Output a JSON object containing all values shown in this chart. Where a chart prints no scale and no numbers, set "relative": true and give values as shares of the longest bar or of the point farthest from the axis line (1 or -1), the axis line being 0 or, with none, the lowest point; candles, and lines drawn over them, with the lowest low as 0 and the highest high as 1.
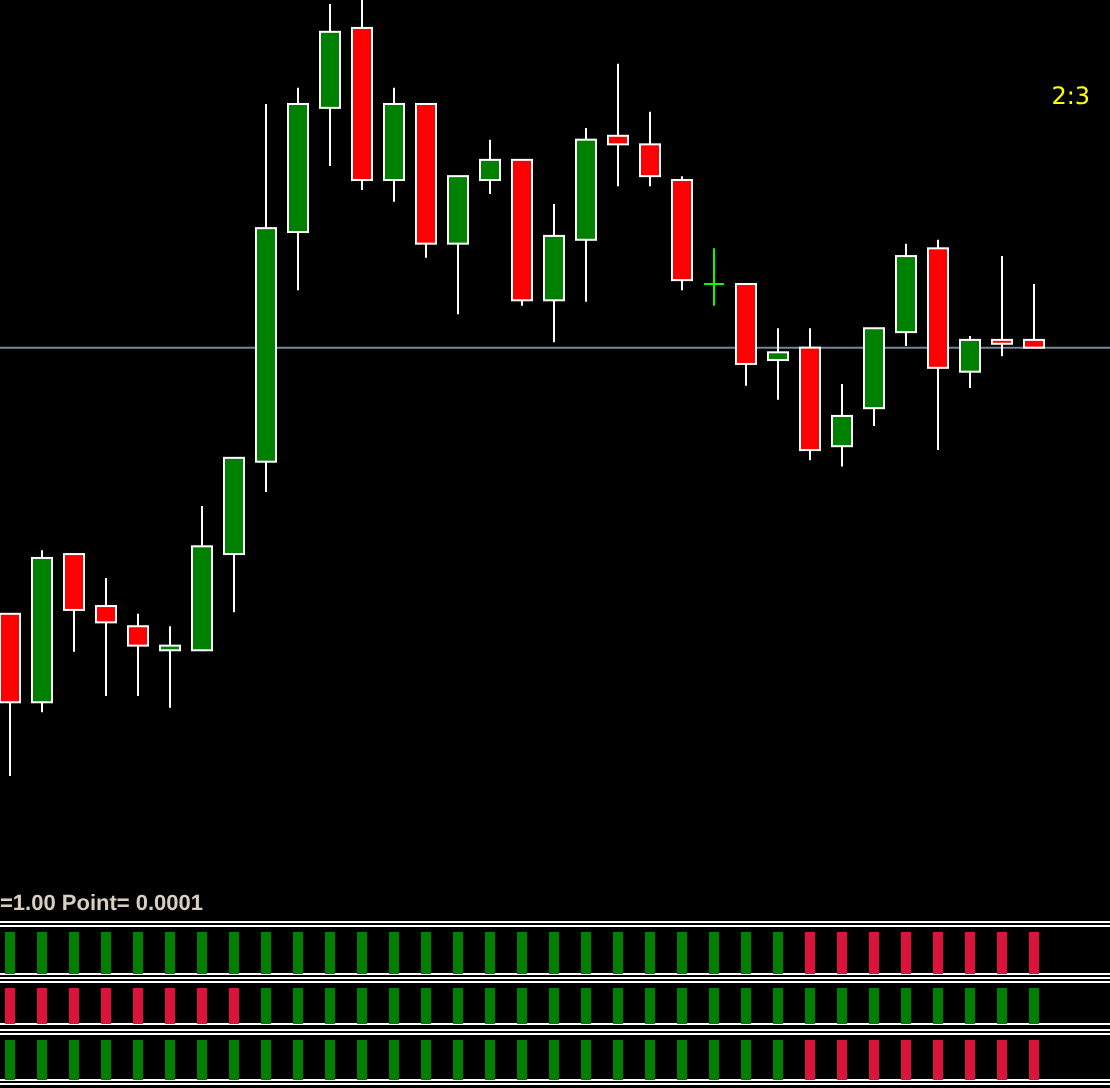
{
  "chart_data": [
    {
      "type": "candlestick",
      "relative": true,
      "tick_labels": false,
      "categories": [
        null,
        null,
        null,
        null,
        null,
        null,
        null,
        null,
        null,
        null,
        null,
        null,
        null,
        null,
        null,
        null,
        null,
        null,
        null,
        null,
        null,
        null,
        null,
        null,
        null,
        null,
        null,
        null,
        null,
        null,
        null,
        null,
        null
      ],
      "ohlc": [
        [
          0.209,
          0.209,
          0,
          0.095
        ],
        [
          0.095,
          0.291,
          0.082,
          0.281
        ],
        [
          0.286,
          0.286,
          0.16,
          0.214
        ],
        [
          0.219,
          0.255,
          0.103,
          0.198
        ],
        [
          0.193,
          0.209,
          0.103,
          0.168
        ],
        [
          0.162,
          0.193,
          0.088,
          0.168
        ],
        [
          0.162,
          0.348,
          0.162,
          0.296
        ],
        [
          0.286,
          0.41,
          0.211,
          0.41
        ],
        [
          0.405,
          0.866,
          0.366,
          0.706
        ],
        [
          0.701,
          0.887,
          0.626,
          0.866
        ],
        [
          0.861,
          0.995,
          0.786,
          0.959
        ],
        [
          0.964,
          1,
          0.755,
          0.768
        ],
        [
          0.768,
          0.887,
          0.74,
          0.866
        ],
        [
          0.866,
          0.866,
          0.668,
          0.686
        ],
        [
          0.686,
          0.773,
          0.595,
          0.773
        ],
        [
          0.768,
          0.82,
          0.75,
          0.794
        ],
        [
          0.794,
          0.794,
          0.606,
          0.613
        ],
        [
          0.613,
          0.737,
          0.559,
          0.696
        ],
        [
          0.691,
          0.835,
          0.611,
          0.82
        ],
        [
          0.825,
          0.918,
          0.76,
          0.814
        ],
        [
          0.814,
          0.856,
          0.76,
          0.773
        ],
        [
          0.768,
          0.773,
          0.626,
          0.639
        ],
        [
          0.634,
          0.68,
          0.606,
          0.634
        ],
        [
          0.634,
          0.634,
          0.503,
          0.531
        ],
        [
          0.536,
          0.577,
          0.485,
          0.546
        ],
        [
          0.552,
          0.577,
          0.407,
          0.42
        ],
        [
          0.425,
          0.505,
          0.399,
          0.464
        ],
        [
          0.474,
          0.577,
          0.451,
          0.577
        ],
        [
          0.572,
          0.686,
          0.554,
          0.67
        ],
        [
          0.68,
          0.691,
          0.42,
          0.526
        ],
        [
          0.521,
          0.567,
          0.5,
          0.562
        ],
        [
          0.562,
          0.67,
          0.541,
          0.557
        ],
        [
          0.562,
          0.634,
          0.552,
          0.552
        ]
      ],
      "colors": [
        "#ff0000",
        "#008000",
        "#ff0000",
        "#ff0000",
        "#ff0000",
        "#008000",
        "#008000",
        "#008000",
        "#008000",
        "#008000",
        "#008000",
        "#ff0000",
        "#008000",
        "#ff0000",
        "#008000",
        "#008000",
        "#ff0000",
        "#008000",
        "#008000",
        "#ff0000",
        "#ff0000",
        "#ff0000",
        "#00ff00",
        "#ff0000",
        "#008000",
        "#ff0000",
        "#008000",
        "#008000",
        "#008000",
        "#ff0000",
        "#008000",
        "#ff0000",
        "#ff0000"
      ],
      "ref_lines": [
        {
          "axis": "y",
          "value": 0.552,
          "color": "#778899"
        }
      ],
      "annotations": [
        "2:3"
      ]
    },
    {
      "type": "bar",
      "relative": true,
      "tick_labels": false,
      "categories": [
        null,
        null,
        null,
        null,
        null,
        null,
        null,
        null,
        null,
        null,
        null,
        null,
        null,
        null,
        null,
        null,
        null,
        null,
        null,
        null,
        null,
        null,
        null,
        null,
        null,
        null,
        null,
        null,
        null,
        null,
        null,
        null,
        null
      ],
      "values": [
        1,
        1,
        1,
        1,
        1,
        1,
        1,
        1,
        1,
        1,
        1,
        1,
        1,
        1,
        1,
        1,
        1,
        1,
        1,
        1,
        1,
        1,
        1,
        1,
        1,
        1,
        1,
        1,
        1,
        1,
        1,
        1,
        1
      ],
      "colors": [
        "#008000",
        "#008000",
        "#008000",
        "#008000",
        "#008000",
        "#008000",
        "#008000",
        "#008000",
        "#008000",
        "#008000",
        "#008000",
        "#008000",
        "#008000",
        "#008000",
        "#008000",
        "#008000",
        "#008000",
        "#008000",
        "#008000",
        "#008000",
        "#008000",
        "#008000",
        "#008000",
        "#008000",
        "#008000",
        "#dc143c",
        "#dc143c",
        "#dc143c",
        "#dc143c",
        "#dc143c",
        "#dc143c",
        "#dc143c",
        "#dc143c"
      ],
      "annotations": [
        "=1.00  Point= 0.0001"
      ]
    },
    {
      "type": "bar",
      "relative": true,
      "tick_labels": false,
      "categories": [
        null,
        null,
        null,
        null,
        null,
        null,
        null,
        null,
        null,
        null,
        null,
        null,
        null,
        null,
        null,
        null,
        null,
        null,
        null,
        null,
        null,
        null,
        null,
        null,
        null,
        null,
        null,
        null,
        null,
        null,
        null,
        null,
        null
      ],
      "values": [
        1,
        1,
        1,
        1,
        1,
        1,
        1,
        1,
        1,
        1,
        1,
        1,
        1,
        1,
        1,
        1,
        1,
        1,
        1,
        1,
        1,
        1,
        1,
        1,
        1,
        1,
        1,
        1,
        1,
        1,
        1,
        1,
        1
      ],
      "colors": [
        "#dc143c",
        "#dc143c",
        "#dc143c",
        "#dc143c",
        "#dc143c",
        "#dc143c",
        "#dc143c",
        "#dc143c",
        "#008000",
        "#008000",
        "#008000",
        "#008000",
        "#008000",
        "#008000",
        "#008000",
        "#008000",
        "#008000",
        "#008000",
        "#008000",
        "#008000",
        "#008000",
        "#008000",
        "#008000",
        "#008000",
        "#008000",
        "#008000",
        "#008000",
        "#008000",
        "#008000",
        "#008000",
        "#008000",
        "#008000",
        "#008000"
      ]
    },
    {
      "type": "bar",
      "relative": true,
      "tick_labels": false,
      "categories": [
        null,
        null,
        null,
        null,
        null,
        null,
        null,
        null,
        null,
        null,
        null,
        null,
        null,
        null,
        null,
        null,
        null,
        null,
        null,
        null,
        null,
        null,
        null,
        null,
        null,
        null,
        null,
        null,
        null,
        null,
        null,
        null,
        null
      ],
      "values": [
        1,
        1,
        1,
        1,
        1,
        1,
        1,
        1,
        1,
        1,
        1,
        1,
        1,
        1,
        1,
        1,
        1,
        1,
        1,
        1,
        1,
        1,
        1,
        1,
        1,
        1,
        1,
        1,
        1,
        1,
        1,
        1,
        1
      ],
      "colors": [
        "#008000",
        "#008000",
        "#008000",
        "#008000",
        "#008000",
        "#008000",
        "#008000",
        "#008000",
        "#008000",
        "#008000",
        "#008000",
        "#008000",
        "#008000",
        "#008000",
        "#008000",
        "#008000",
        "#008000",
        "#008000",
        "#008000",
        "#008000",
        "#008000",
        "#008000",
        "#008000",
        "#008000",
        "#008000",
        "#dc143c",
        "#dc143c",
        "#dc143c",
        "#dc143c",
        "#dc143c",
        "#dc143c",
        "#dc143c",
        "#dc143c"
      ]
    }
  ]
}
